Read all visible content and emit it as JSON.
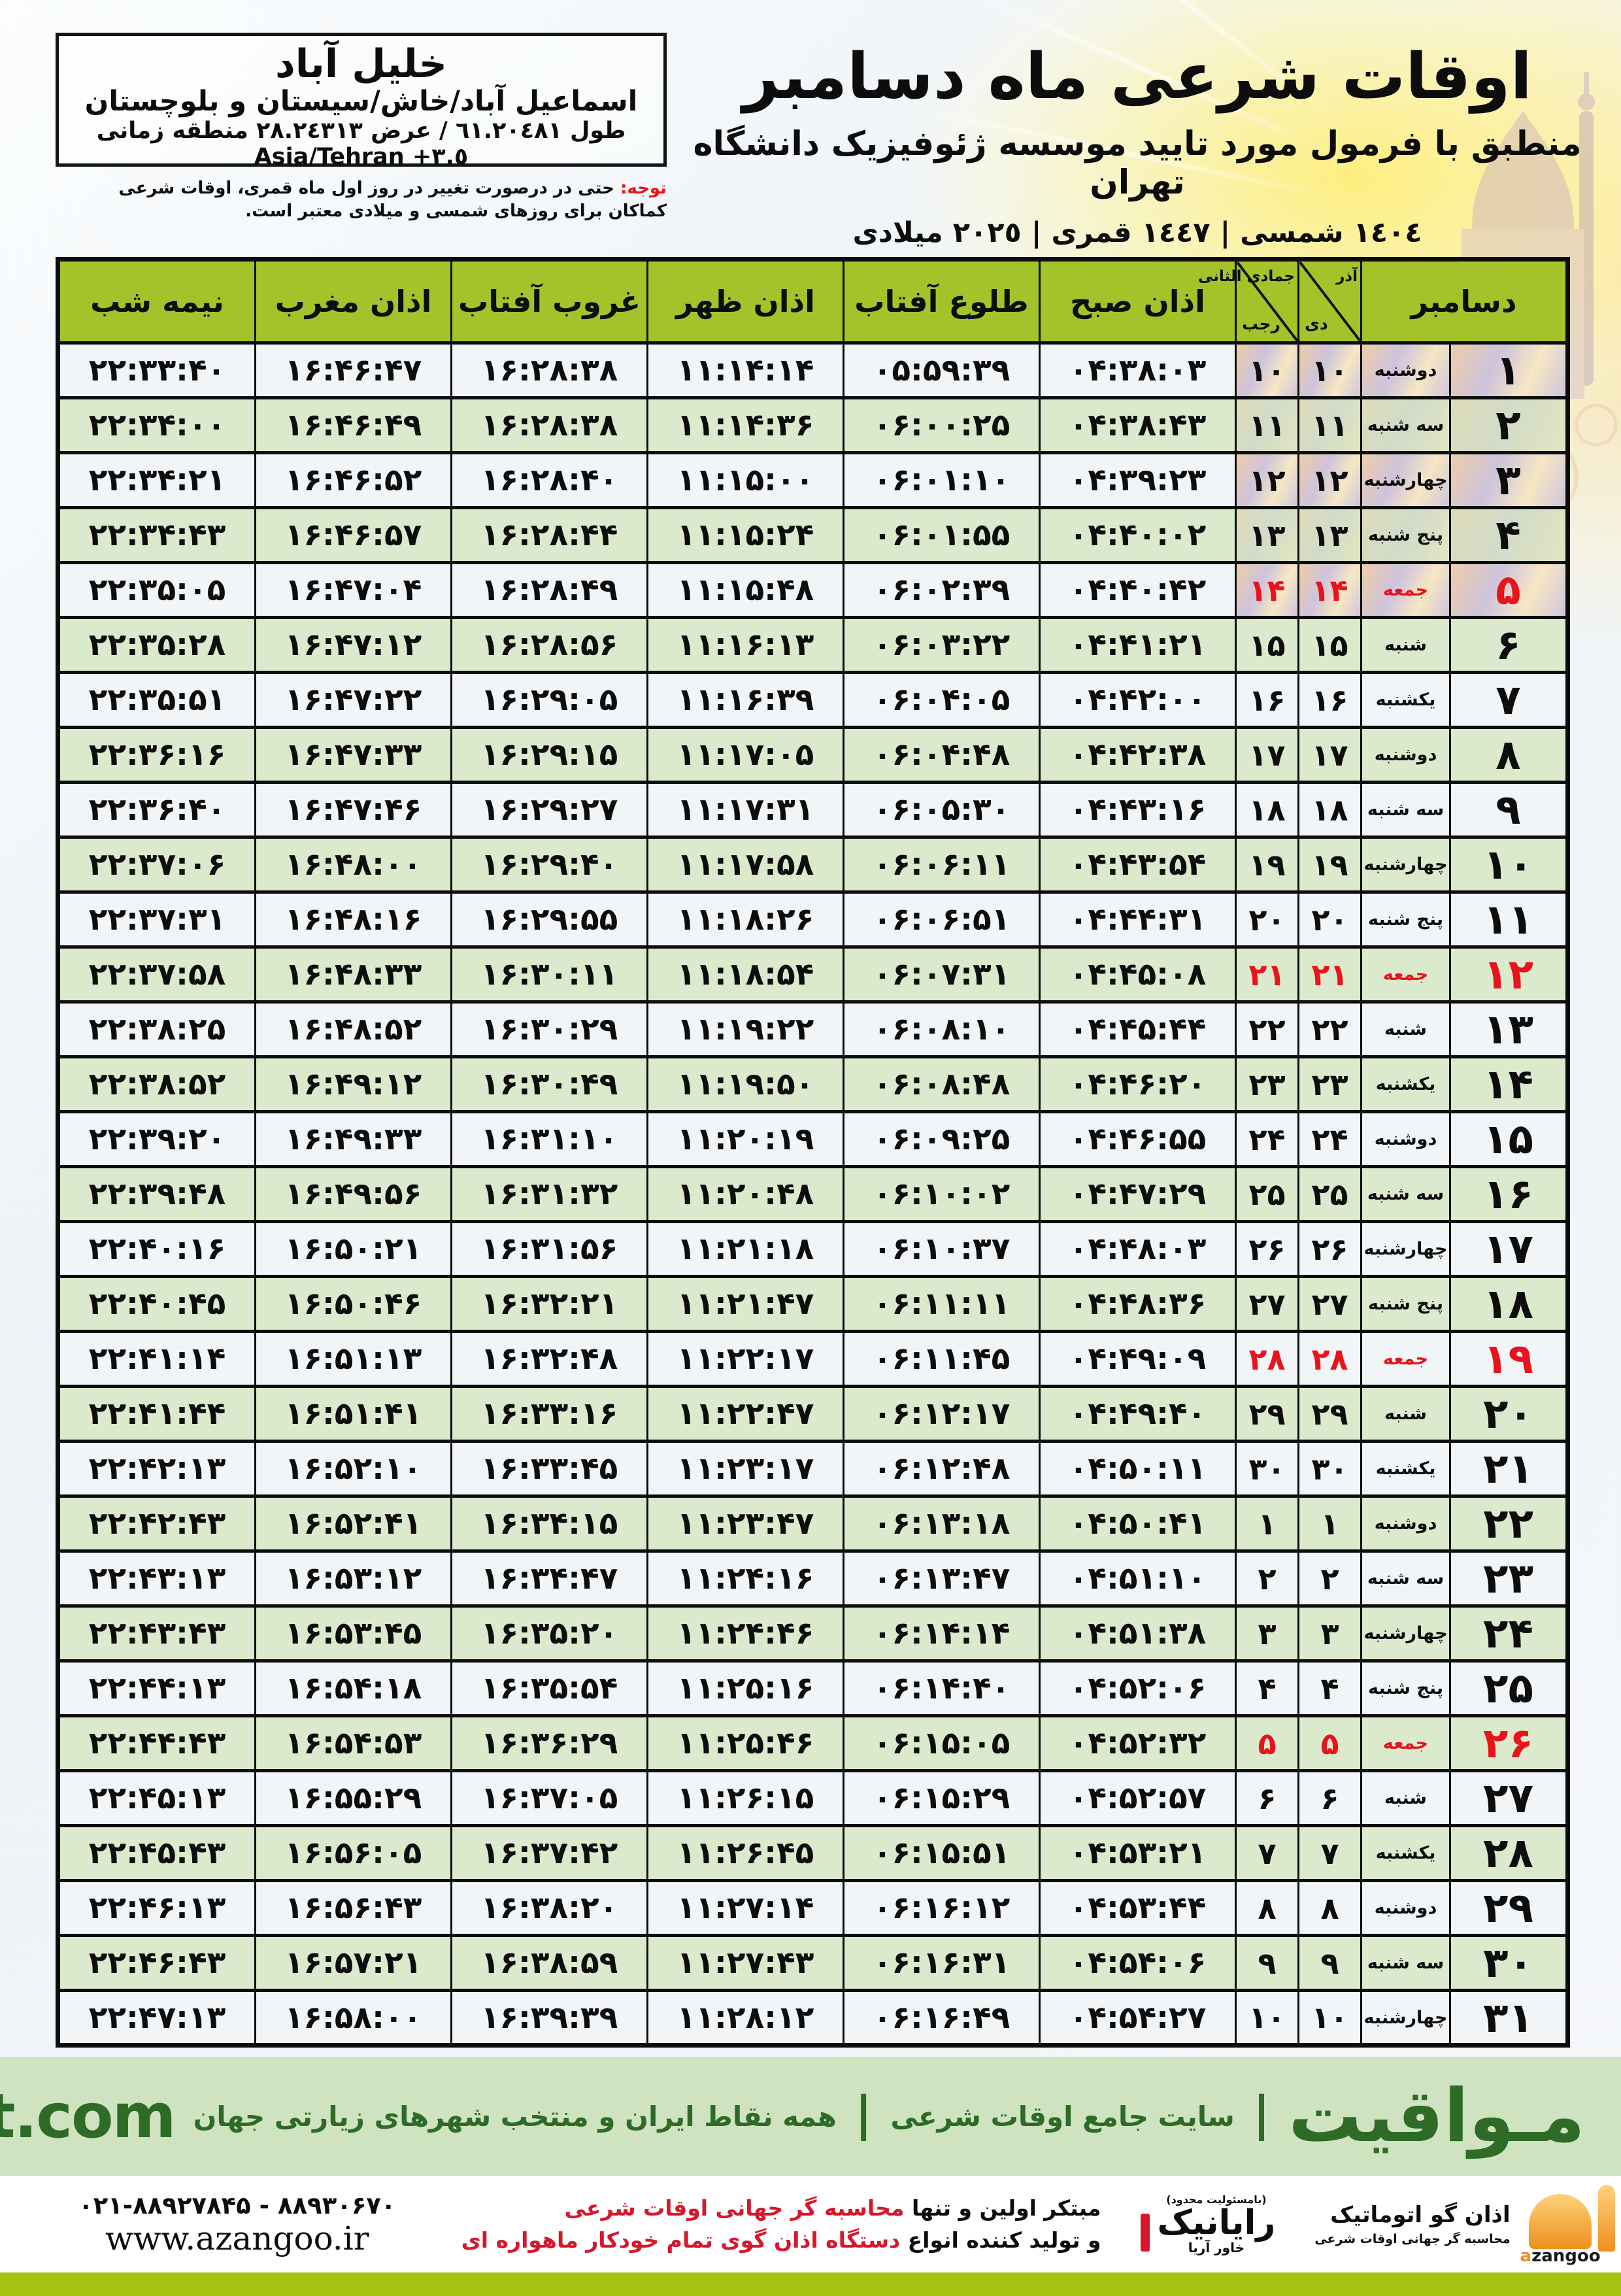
{
  "title": {
    "main": "اوقات شرعی ماه دسامبر",
    "subtitle": "منطبق با فرمول مورد تایید موسسه ژئوفیزیک دانشگاه تهران",
    "dates": "١٤٠٤ شمسی | ١٤٤٧ قمری | ٢٠٢٥ میلادی"
  },
  "location": {
    "city": "خلیل آباد",
    "region": "اسماعیل آباد/خاش/سیستان و بلوچستان",
    "coords_fa": "طول ٦١.٢٠٤٨١ / عرض ٢٨.٢٤٣١٣ منطقه زمانی",
    "coords_tz": "Asia/Tehran +٣.٥"
  },
  "notice": {
    "label": "توجه:",
    "text": "حتی در درصورت تغییر در روز اول ماه قمری، اوقات شرعی کماکان برای روزهای شمسی و میلادی معتبر است."
  },
  "table": {
    "headers": {
      "december": "دسامبر",
      "solar_top": "آذر",
      "solar_bottom": "دی",
      "lunar_top": "جمادی الثانی",
      "lunar_bottom": "رجب",
      "fajr": "اذان صبح",
      "sunrise": "طلوع آفتاب",
      "dhuhr": "اذان ظهر",
      "sunset": "غروب آفتاب",
      "maghrib": "اذان مغرب",
      "midnight": "نیمه شب"
    },
    "rows": [
      {
        "day": "۱",
        "weekday": "دوشنبه",
        "solar": "۱۰",
        "lunar": "۱۰",
        "fajr": "۰۴:۳۸:۰۳",
        "sunrise": "۰۵:۵۹:۳۹",
        "dhuhr": "۱۱:۱۴:۱۴",
        "sunset": "۱۶:۲۸:۳۸",
        "maghrib": "۱۶:۴۶:۴۷",
        "midnight": "۲۲:۳۳:۴۰",
        "friday": false
      },
      {
        "day": "۲",
        "weekday": "سه شنبه",
        "solar": "۱۱",
        "lunar": "۱۱",
        "fajr": "۰۴:۳۸:۴۳",
        "sunrise": "۰۶:۰۰:۲۵",
        "dhuhr": "۱۱:۱۴:۳۶",
        "sunset": "۱۶:۲۸:۳۸",
        "maghrib": "۱۶:۴۶:۴۹",
        "midnight": "۲۲:۳۴:۰۰",
        "friday": false
      },
      {
        "day": "۳",
        "weekday": "چهارشنبه",
        "solar": "۱۲",
        "lunar": "۱۲",
        "fajr": "۰۴:۳۹:۲۳",
        "sunrise": "۰۶:۰۱:۱۰",
        "dhuhr": "۱۱:۱۵:۰۰",
        "sunset": "۱۶:۲۸:۴۰",
        "maghrib": "۱۶:۴۶:۵۲",
        "midnight": "۲۲:۳۴:۲۱",
        "friday": false
      },
      {
        "day": "۴",
        "weekday": "پنج شنبه",
        "solar": "۱۳",
        "lunar": "۱۳",
        "fajr": "۰۴:۴۰:۰۲",
        "sunrise": "۰۶:۰۱:۵۵",
        "dhuhr": "۱۱:۱۵:۲۴",
        "sunset": "۱۶:۲۸:۴۴",
        "maghrib": "۱۶:۴۶:۵۷",
        "midnight": "۲۲:۳۴:۴۳",
        "friday": false
      },
      {
        "day": "۵",
        "weekday": "جمعه",
        "solar": "۱۴",
        "lunar": "۱۴",
        "fajr": "۰۴:۴۰:۴۲",
        "sunrise": "۰۶:۰۲:۳۹",
        "dhuhr": "۱۱:۱۵:۴۸",
        "sunset": "۱۶:۲۸:۴۹",
        "maghrib": "۱۶:۴۷:۰۴",
        "midnight": "۲۲:۳۵:۰۵",
        "friday": true
      },
      {
        "day": "۶",
        "weekday": "شنبه",
        "solar": "۱۵",
        "lunar": "۱۵",
        "fajr": "۰۴:۴۱:۲۱",
        "sunrise": "۰۶:۰۳:۲۲",
        "dhuhr": "۱۱:۱۶:۱۳",
        "sunset": "۱۶:۲۸:۵۶",
        "maghrib": "۱۶:۴۷:۱۲",
        "midnight": "۲۲:۳۵:۲۸",
        "friday": false
      },
      {
        "day": "۷",
        "weekday": "یکشنبه",
        "solar": "۱۶",
        "lunar": "۱۶",
        "fajr": "۰۴:۴۲:۰۰",
        "sunrise": "۰۶:۰۴:۰۵",
        "dhuhr": "۱۱:۱۶:۳۹",
        "sunset": "۱۶:۲۹:۰۵",
        "maghrib": "۱۶:۴۷:۲۲",
        "midnight": "۲۲:۳۵:۵۱",
        "friday": false
      },
      {
        "day": "۸",
        "weekday": "دوشنبه",
        "solar": "۱۷",
        "lunar": "۱۷",
        "fajr": "۰۴:۴۲:۳۸",
        "sunrise": "۰۶:۰۴:۴۸",
        "dhuhr": "۱۱:۱۷:۰۵",
        "sunset": "۱۶:۲۹:۱۵",
        "maghrib": "۱۶:۴۷:۳۳",
        "midnight": "۲۲:۳۶:۱۶",
        "friday": false
      },
      {
        "day": "۹",
        "weekday": "سه شنبه",
        "solar": "۱۸",
        "lunar": "۱۸",
        "fajr": "۰۴:۴۳:۱۶",
        "sunrise": "۰۶:۰۵:۳۰",
        "dhuhr": "۱۱:۱۷:۳۱",
        "sunset": "۱۶:۲۹:۲۷",
        "maghrib": "۱۶:۴۷:۴۶",
        "midnight": "۲۲:۳۶:۴۰",
        "friday": false
      },
      {
        "day": "۱۰",
        "weekday": "چهارشنبه",
        "solar": "۱۹",
        "lunar": "۱۹",
        "fajr": "۰۴:۴۳:۵۴",
        "sunrise": "۰۶:۰۶:۱۱",
        "dhuhr": "۱۱:۱۷:۵۸",
        "sunset": "۱۶:۲۹:۴۰",
        "maghrib": "۱۶:۴۸:۰۰",
        "midnight": "۲۲:۳۷:۰۶",
        "friday": false
      },
      {
        "day": "۱۱",
        "weekday": "پنج شنبه",
        "solar": "۲۰",
        "lunar": "۲۰",
        "fajr": "۰۴:۴۴:۳۱",
        "sunrise": "۰۶:۰۶:۵۱",
        "dhuhr": "۱۱:۱۸:۲۶",
        "sunset": "۱۶:۲۹:۵۵",
        "maghrib": "۱۶:۴۸:۱۶",
        "midnight": "۲۲:۳۷:۳۱",
        "friday": false
      },
      {
        "day": "۱۲",
        "weekday": "جمعه",
        "solar": "۲۱",
        "lunar": "۲۱",
        "fajr": "۰۴:۴۵:۰۸",
        "sunrise": "۰۶:۰۷:۳۱",
        "dhuhr": "۱۱:۱۸:۵۴",
        "sunset": "۱۶:۳۰:۱۱",
        "maghrib": "۱۶:۴۸:۳۳",
        "midnight": "۲۲:۳۷:۵۸",
        "friday": true
      },
      {
        "day": "۱۳",
        "weekday": "شنبه",
        "solar": "۲۲",
        "lunar": "۲۲",
        "fajr": "۰۴:۴۵:۴۴",
        "sunrise": "۰۶:۰۸:۱۰",
        "dhuhr": "۱۱:۱۹:۲۲",
        "sunset": "۱۶:۳۰:۲۹",
        "maghrib": "۱۶:۴۸:۵۲",
        "midnight": "۲۲:۳۸:۲۵",
        "friday": false
      },
      {
        "day": "۱۴",
        "weekday": "یکشنبه",
        "solar": "۲۳",
        "lunar": "۲۳",
        "fajr": "۰۴:۴۶:۲۰",
        "sunrise": "۰۶:۰۸:۴۸",
        "dhuhr": "۱۱:۱۹:۵۰",
        "sunset": "۱۶:۳۰:۴۹",
        "maghrib": "۱۶:۴۹:۱۲",
        "midnight": "۲۲:۳۸:۵۲",
        "friday": false
      },
      {
        "day": "۱۵",
        "weekday": "دوشنبه",
        "solar": "۲۴",
        "lunar": "۲۴",
        "fajr": "۰۴:۴۶:۵۵",
        "sunrise": "۰۶:۰۹:۲۵",
        "dhuhr": "۱۱:۲۰:۱۹",
        "sunset": "۱۶:۳۱:۱۰",
        "maghrib": "۱۶:۴۹:۳۳",
        "midnight": "۲۲:۳۹:۲۰",
        "friday": false
      },
      {
        "day": "۱۶",
        "weekday": "سه شنبه",
        "solar": "۲۵",
        "lunar": "۲۵",
        "fajr": "۰۴:۴۷:۲۹",
        "sunrise": "۰۶:۱۰:۰۲",
        "dhuhr": "۱۱:۲۰:۴۸",
        "sunset": "۱۶:۳۱:۳۲",
        "maghrib": "۱۶:۴۹:۵۶",
        "midnight": "۲۲:۳۹:۴۸",
        "friday": false
      },
      {
        "day": "۱۷",
        "weekday": "چهارشنبه",
        "solar": "۲۶",
        "lunar": "۲۶",
        "fajr": "۰۴:۴۸:۰۳",
        "sunrise": "۰۶:۱۰:۳۷",
        "dhuhr": "۱۱:۲۱:۱۸",
        "sunset": "۱۶:۳۱:۵۶",
        "maghrib": "۱۶:۵۰:۲۱",
        "midnight": "۲۲:۴۰:۱۶",
        "friday": false
      },
      {
        "day": "۱۸",
        "weekday": "پنج شنبه",
        "solar": "۲۷",
        "lunar": "۲۷",
        "fajr": "۰۴:۴۸:۳۶",
        "sunrise": "۰۶:۱۱:۱۱",
        "dhuhr": "۱۱:۲۱:۴۷",
        "sunset": "۱۶:۳۲:۲۱",
        "maghrib": "۱۶:۵۰:۴۶",
        "midnight": "۲۲:۴۰:۴۵",
        "friday": false
      },
      {
        "day": "۱۹",
        "weekday": "جمعه",
        "solar": "۲۸",
        "lunar": "۲۸",
        "fajr": "۰۴:۴۹:۰۹",
        "sunrise": "۰۶:۱۱:۴۵",
        "dhuhr": "۱۱:۲۲:۱۷",
        "sunset": "۱۶:۳۲:۴۸",
        "maghrib": "۱۶:۵۱:۱۳",
        "midnight": "۲۲:۴۱:۱۴",
        "friday": true
      },
      {
        "day": "۲۰",
        "weekday": "شنبه",
        "solar": "۲۹",
        "lunar": "۲۹",
        "fajr": "۰۴:۴۹:۴۰",
        "sunrise": "۰۶:۱۲:۱۷",
        "dhuhr": "۱۱:۲۲:۴۷",
        "sunset": "۱۶:۳۳:۱۶",
        "maghrib": "۱۶:۵۱:۴۱",
        "midnight": "۲۲:۴۱:۴۴",
        "friday": false
      },
      {
        "day": "۲۱",
        "weekday": "یکشنبه",
        "solar": "۳۰",
        "lunar": "۳۰",
        "fajr": "۰۴:۵۰:۱۱",
        "sunrise": "۰۶:۱۲:۴۸",
        "dhuhr": "۱۱:۲۳:۱۷",
        "sunset": "۱۶:۳۳:۴۵",
        "maghrib": "۱۶:۵۲:۱۰",
        "midnight": "۲۲:۴۲:۱۳",
        "friday": false
      },
      {
        "day": "۲۲",
        "weekday": "دوشنبه",
        "solar": "۱",
        "lunar": "۱",
        "fajr": "۰۴:۵۰:۴۱",
        "sunrise": "۰۶:۱۳:۱۸",
        "dhuhr": "۱۱:۲۳:۴۷",
        "sunset": "۱۶:۳۴:۱۵",
        "maghrib": "۱۶:۵۲:۴۱",
        "midnight": "۲۲:۴۲:۴۳",
        "friday": false
      },
      {
        "day": "۲۳",
        "weekday": "سه شنبه",
        "solar": "۲",
        "lunar": "۲",
        "fajr": "۰۴:۵۱:۱۰",
        "sunrise": "۰۶:۱۳:۴۷",
        "dhuhr": "۱۱:۲۴:۱۶",
        "sunset": "۱۶:۳۴:۴۷",
        "maghrib": "۱۶:۵۳:۱۲",
        "midnight": "۲۲:۴۳:۱۳",
        "friday": false
      },
      {
        "day": "۲۴",
        "weekday": "چهارشنبه",
        "solar": "۳",
        "lunar": "۳",
        "fajr": "۰۴:۵۱:۳۸",
        "sunrise": "۰۶:۱۴:۱۴",
        "dhuhr": "۱۱:۲۴:۴۶",
        "sunset": "۱۶:۳۵:۲۰",
        "maghrib": "۱۶:۵۳:۴۵",
        "midnight": "۲۲:۴۳:۴۳",
        "friday": false
      },
      {
        "day": "۲۵",
        "weekday": "پنج شنبه",
        "solar": "۴",
        "lunar": "۴",
        "fajr": "۰۴:۵۲:۰۶",
        "sunrise": "۰۶:۱۴:۴۰",
        "dhuhr": "۱۱:۲۵:۱۶",
        "sunset": "۱۶:۳۵:۵۴",
        "maghrib": "۱۶:۵۴:۱۸",
        "midnight": "۲۲:۴۴:۱۳",
        "friday": false
      },
      {
        "day": "۲۶",
        "weekday": "جمعه",
        "solar": "۵",
        "lunar": "۵",
        "fajr": "۰۴:۵۲:۳۲",
        "sunrise": "۰۶:۱۵:۰۵",
        "dhuhr": "۱۱:۲۵:۴۶",
        "sunset": "۱۶:۳۶:۲۹",
        "maghrib": "۱۶:۵۴:۵۳",
        "midnight": "۲۲:۴۴:۴۳",
        "friday": true
      },
      {
        "day": "۲۷",
        "weekday": "شنبه",
        "solar": "۶",
        "lunar": "۶",
        "fajr": "۰۴:۵۲:۵۷",
        "sunrise": "۰۶:۱۵:۲۹",
        "dhuhr": "۱۱:۲۶:۱۵",
        "sunset": "۱۶:۳۷:۰۵",
        "maghrib": "۱۶:۵۵:۲۹",
        "midnight": "۲۲:۴۵:۱۳",
        "friday": false
      },
      {
        "day": "۲۸",
        "weekday": "یکشنبه",
        "solar": "۷",
        "lunar": "۷",
        "fajr": "۰۴:۵۳:۲۱",
        "sunrise": "۰۶:۱۵:۵۱",
        "dhuhr": "۱۱:۲۶:۴۵",
        "sunset": "۱۶:۳۷:۴۲",
        "maghrib": "۱۶:۵۶:۰۵",
        "midnight": "۲۲:۴۵:۴۳",
        "friday": false
      },
      {
        "day": "۲۹",
        "weekday": "دوشنبه",
        "solar": "۸",
        "lunar": "۸",
        "fajr": "۰۴:۵۳:۴۴",
        "sunrise": "۰۶:۱۶:۱۲",
        "dhuhr": "۱۱:۲۷:۱۴",
        "sunset": "۱۶:۳۸:۲۰",
        "maghrib": "۱۶:۵۶:۴۳",
        "midnight": "۲۲:۴۶:۱۳",
        "friday": false
      },
      {
        "day": "۳۰",
        "weekday": "سه شنبه",
        "solar": "۹",
        "lunar": "۹",
        "fajr": "۰۴:۵۴:۰۶",
        "sunrise": "۰۶:۱۶:۳۱",
        "dhuhr": "۱۱:۲۷:۴۳",
        "sunset": "۱۶:۳۸:۵۹",
        "maghrib": "۱۶:۵۷:۲۱",
        "midnight": "۲۲:۴۶:۴۳",
        "friday": false
      },
      {
        "day": "۳۱",
        "weekday": "چهارشنبه",
        "solar": "۱۰",
        "lunar": "۱۰",
        "fajr": "۰۴:۵۴:۲۷",
        "sunrise": "۰۶:۱۶:۴۹",
        "dhuhr": "۱۱:۲۸:۱۲",
        "sunset": "۱۶:۳۹:۳۹",
        "maghrib": "۱۶:۵۸:۰۰",
        "midnight": "۲۲:۴۷:۱۳",
        "friday": false
      }
    ]
  },
  "brand_band": {
    "brand": "مـواقیت",
    "separator": "|",
    "tagline_site": "سایت جامع اوقات شرعی",
    "tagline_coverage": "همه نقاط ایران و منتخب شهرهای زیارتی جهان",
    "domain": "mavaqeet.com"
  },
  "bottom": {
    "phones": "۰۲۱-۸۸۹۲۷۸۴۵ - ۸۸۹۳۰۶۷۰",
    "website": "www.azangoo.ir",
    "slogan_line1_black": "مبتکر اولین و تنها",
    "slogan_line1_red": "محاسبه گر جهانی اوقات شرعی",
    "slogan_line2_black": "و تولید کننده انواع",
    "slogan_line2_red": "دستگاه اذان گوی تمام خودکار ماهواره ای",
    "rayanik_note": "(بامسئولیت محدود)",
    "rayanik_name": "رایانیک",
    "rayanik_sub": "خاور آریا",
    "azangoo_fa_name": "اذان گو اتوماتیک",
    "azangoo_fa_sub": "محاسبه گر جهانی اوقات شرعی",
    "azangoo_en": "azangoo"
  },
  "colors": {
    "header_green": "#a4c32a",
    "row_green": "#dbe9cd",
    "row_light": "#f2f5f8",
    "accent_red": "#e8131b",
    "band_bg": "#cfe3c0",
    "band_text": "#2d6b26",
    "lime_bar": "#a6c313"
  }
}
